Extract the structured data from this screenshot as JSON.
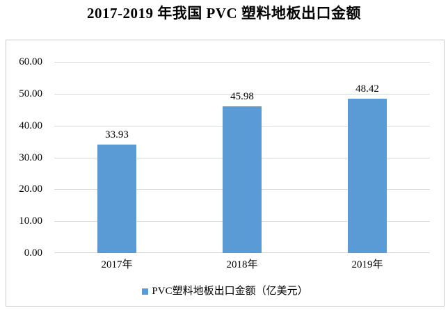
{
  "title": "2017-2019 年我国 PVC 塑料地板出口金额",
  "colors": {
    "bar": "#5B9BD5",
    "gridline": "#D9D9D9",
    "plot_border": "#C9C9C9",
    "text": "#000000"
  },
  "legend": {
    "label": "PVC塑料地板出口金额（亿美元）"
  },
  "chart_data": {
    "type": "bar",
    "title": "2017-2019 年我国 PVC 塑料地板出口金额",
    "categories": [
      "2017年",
      "2018年",
      "2019年"
    ],
    "values": [
      33.93,
      45.98,
      48.42
    ],
    "value_labels": [
      "33.93",
      "45.98",
      "48.42"
    ],
    "series_name": "PVC塑料地板出口金额（亿美元）",
    "xlabel": "",
    "ylabel": "",
    "ylim": [
      0,
      60
    ],
    "ytick_step": 10,
    "ytick_labels": [
      "0.00",
      "10.00",
      "20.00",
      "30.00",
      "40.00",
      "50.00",
      "60.00"
    ],
    "grid": true,
    "legend_position": "bottom"
  }
}
